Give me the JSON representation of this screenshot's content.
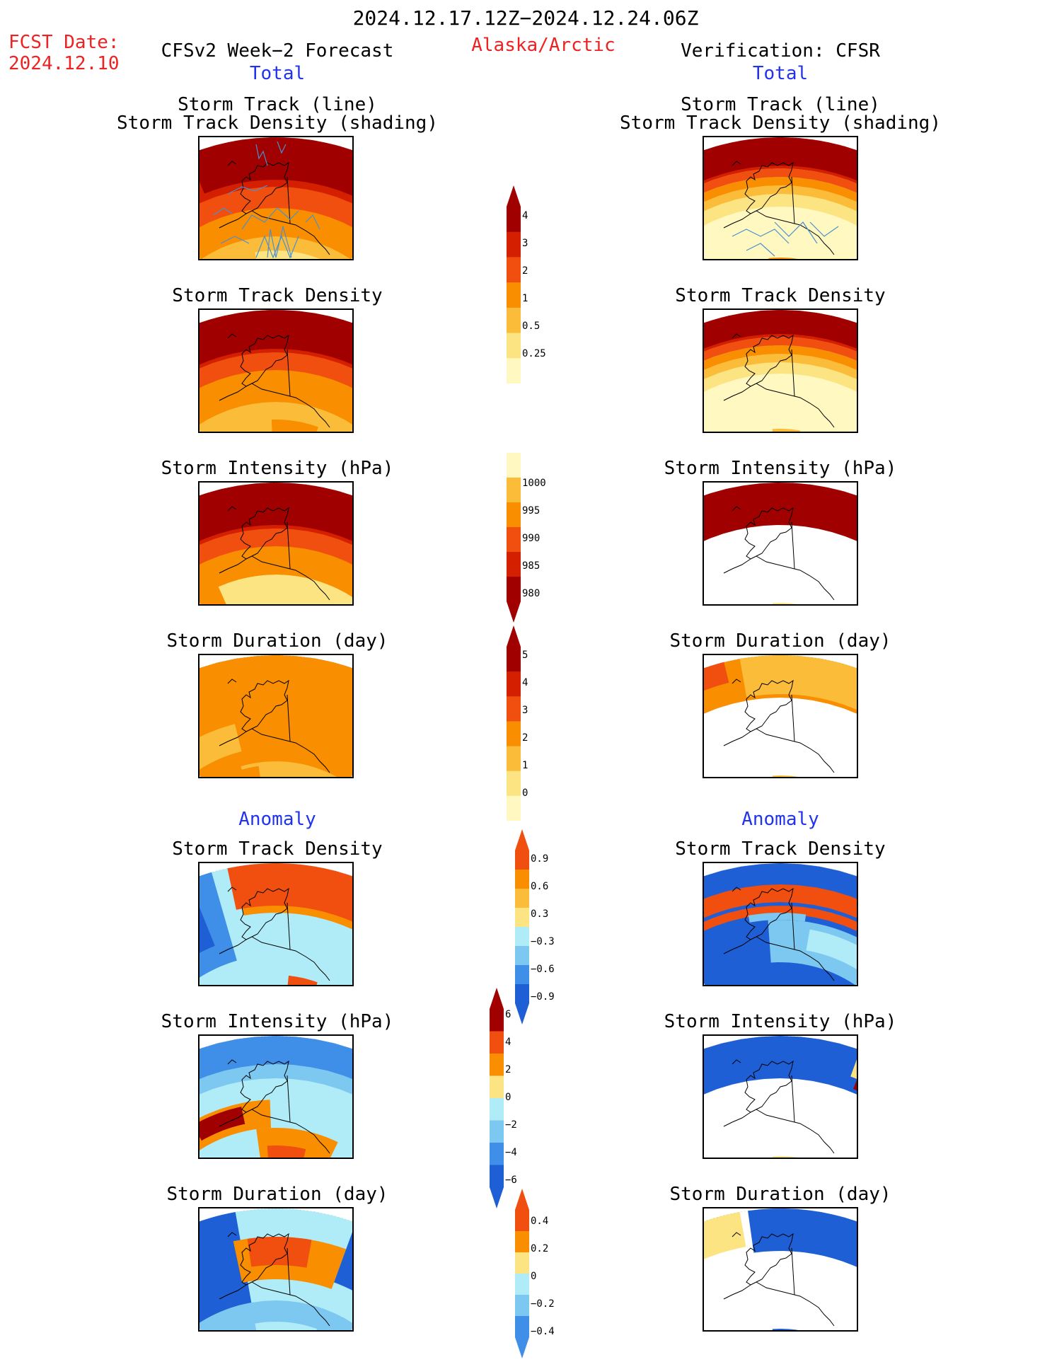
{
  "header": {
    "period": "2024.12.17.12Z−2024.12.24.06Z",
    "fcst_label": "FCST Date:",
    "fcst_date": "2024.12.10",
    "left_title": "CFSv2 Week−2 Forecast",
    "region": "Alaska/Arctic",
    "right_title": "Verification: CFSR",
    "left_section": "Total",
    "right_section": "Total",
    "anomaly_left": "Anomaly",
    "anomaly_right": "Anomaly"
  },
  "panels": {
    "track_line": "Storm Track (line)",
    "track_density_shading": "Storm Track Density (shading)",
    "density": "Storm Track Density",
    "intensity": "Storm Intensity (hPa)",
    "duration": "Storm Duration (day)"
  },
  "colorbars": {
    "density_total": [
      "4",
      "3",
      "2",
      "1",
      "0.5",
      "0.25"
    ],
    "intensity_total": [
      "1000",
      "995",
      "990",
      "985",
      "980"
    ],
    "duration_total": [
      "5",
      "4",
      "3",
      "2",
      "1",
      "0"
    ],
    "density_anom": [
      "0.9",
      "0.6",
      "0.3",
      "−0.3",
      "−0.6",
      "−0.9"
    ],
    "intensity_anom": [
      "6",
      "4",
      "2",
      "0",
      "−2",
      "−4",
      "−6"
    ],
    "duration_anom": [
      "0.4",
      "0.2",
      "0",
      "−0.2",
      "−0.4"
    ]
  },
  "colors": {
    "darkred": "#a00000",
    "red": "#d42000",
    "orangered": "#f04f10",
    "orange": "#f88e00",
    "lightorange": "#fbbc3a",
    "yellow": "#fde483",
    "paleyellow": "#fff8c0",
    "lightblue": "#b0ecf8",
    "skyblue": "#7cc8f0",
    "blue": "#3f8ee8",
    "darkblue": "#1f5fd6",
    "track": "#4a90d0"
  }
}
